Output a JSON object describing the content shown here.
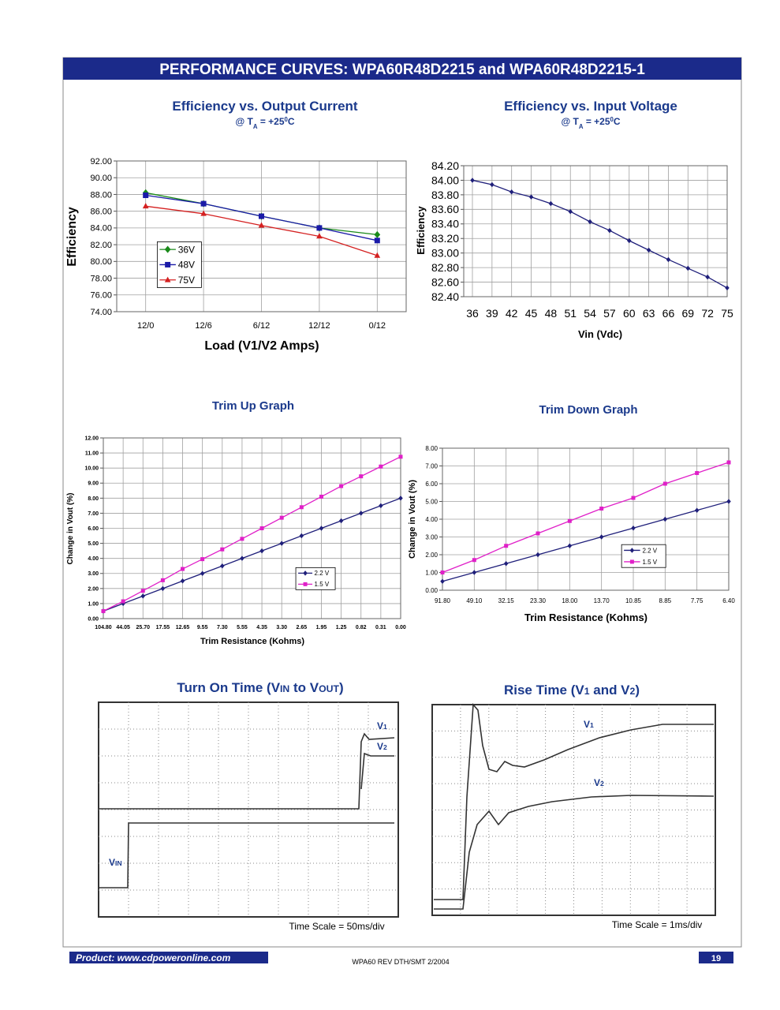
{
  "header": {
    "title": "PERFORMANCE CURVES:  WPA60R48D2215 and WPA60R48D2215-1"
  },
  "chart_data": [
    {
      "type": "line",
      "title": "Efficiency vs. Output Current",
      "subtitle": [
        "@ T",
        "A",
        " = +25",
        "0",
        "C"
      ],
      "x_label": "Load (V1/V2 Amps)",
      "y_label": "Efficiency",
      "categories": [
        "12/0",
        "12/6",
        "6/12",
        "12/12",
        "0/12"
      ],
      "series": [
        {
          "name": "36V",
          "color": "#1a8a1a",
          "marker": "diamond",
          "values": [
            88.2,
            86.9,
            85.4,
            84.0,
            83.2
          ]
        },
        {
          "name": "48V",
          "color": "#1a1aa8",
          "marker": "square",
          "values": [
            87.9,
            86.9,
            85.4,
            84.0,
            82.5
          ]
        },
        {
          "name": "75V",
          "color": "#d42020",
          "marker": "triangle",
          "values": [
            86.6,
            85.7,
            84.3,
            83.0,
            80.7
          ]
        }
      ],
      "ylim": [
        74,
        92
      ],
      "yticks": [
        {
          "value": 74,
          "label": "74.00"
        },
        {
          "value": 76,
          "label": "76.00"
        },
        {
          "value": 78,
          "label": "78.00"
        },
        {
          "value": 80,
          "label": "80.00"
        },
        {
          "value": 82,
          "label": "82.00"
        },
        {
          "value": 84,
          "label": "84.00"
        },
        {
          "value": 86,
          "label": "86.00"
        },
        {
          "value": 88,
          "label": "88.00"
        },
        {
          "value": 90,
          "label": "90.00"
        },
        {
          "value": 92,
          "label": "92.00"
        }
      ],
      "grid": true,
      "legend": "lower left"
    },
    {
      "type": "line",
      "title": "Efficiency vs. Input Voltage",
      "subtitle": [
        "@ T",
        "A",
        " = +25",
        "0",
        "C"
      ],
      "x_label": "Vin (Vdc)",
      "y_label": "Efficiency",
      "categories": [
        "36",
        "39",
        "42",
        "45",
        "48",
        "51",
        "54",
        "57",
        "60",
        "63",
        "66",
        "69",
        "72",
        "75"
      ],
      "series": [
        {
          "color": "#1f1f7a",
          "marker": "diamond",
          "values": [
            84.0,
            83.94,
            83.84,
            83.77,
            83.68,
            83.57,
            83.43,
            83.31,
            83.17,
            83.04,
            82.91,
            82.79,
            82.67,
            82.52
          ]
        }
      ],
      "ylim": [
        82.4,
        84.2
      ],
      "yticks": [
        {
          "value": 82.4,
          "label": "82.40"
        },
        {
          "value": 82.6,
          "label": "82.60"
        },
        {
          "value": 82.8,
          "label": "82.80"
        },
        {
          "value": 83.0,
          "label": "83.00"
        },
        {
          "value": 83.2,
          "label": "83.20"
        },
        {
          "value": 83.4,
          "label": "83.40"
        },
        {
          "value": 83.6,
          "label": "83.60"
        },
        {
          "value": 83.8,
          "label": "83.80"
        },
        {
          "value": 84.0,
          "label": "84.00"
        },
        {
          "value": 84.2,
          "label": "84.20"
        }
      ],
      "grid": true
    },
    {
      "type": "line",
      "title": "Trim Up Graph",
      "x_label": "Trim Resistance (Kohms)",
      "y_label": "Change in Vout (%)",
      "categories": [
        "104.80",
        "44.05",
        "25.70",
        "17.55",
        "12.65",
        "9.55",
        "7.30",
        "5.55",
        "4.35",
        "3.30",
        "2.65",
        "1.95",
        "1.25",
        "0.82",
        "0.31",
        "0.00"
      ],
      "series": [
        {
          "name": "2.2 V",
          "color": "#1f1f7a",
          "marker": "diamond",
          "values": [
            0.5,
            1.0,
            1.5,
            2.0,
            2.5,
            3.0,
            3.5,
            4.0,
            4.5,
            5.0,
            5.5,
            6.0,
            6.5,
            7.0,
            7.5,
            8.0
          ]
        },
        {
          "name": "1.5 V",
          "color": "#e020c8",
          "marker": "square",
          "values": [
            0.5,
            1.15,
            1.85,
            2.55,
            3.3,
            3.95,
            4.6,
            5.3,
            6.0,
            6.7,
            7.4,
            8.1,
            8.8,
            9.45,
            10.1,
            10.75
          ]
        }
      ],
      "ylim": [
        0,
        12
      ],
      "yticks": [
        {
          "value": 0,
          "label": "0.00"
        },
        {
          "value": 1,
          "label": "1.00"
        },
        {
          "value": 2,
          "label": "2.00"
        },
        {
          "value": 3,
          "label": "3.00"
        },
        {
          "value": 4,
          "label": "4.00"
        },
        {
          "value": 5,
          "label": "5.00"
        },
        {
          "value": 6,
          "label": "6.00"
        },
        {
          "value": 7,
          "label": "7.00"
        },
        {
          "value": 8,
          "label": "8.00"
        },
        {
          "value": 9,
          "label": "9.00"
        },
        {
          "value": 10,
          "label": "10.00"
        },
        {
          "value": 11,
          "label": "11.00"
        },
        {
          "value": 12,
          "label": "12.00"
        }
      ],
      "grid": true,
      "legend": "lower right"
    },
    {
      "type": "line",
      "title": "Trim Down Graph",
      "x_label": "Trim Resistance (Kohms)",
      "y_label": "Change in Vout (%)",
      "categories": [
        "91.80",
        "49.10",
        "32.15",
        "23.30",
        "18.00",
        "13.70",
        "10.85",
        "8.85",
        "7.75",
        "6.40"
      ],
      "series": [
        {
          "name": "2.2 V",
          "color": "#1f1f7a",
          "marker": "diamond",
          "values": [
            0.5,
            1.0,
            1.5,
            2.0,
            2.5,
            3.0,
            3.5,
            4.0,
            4.5,
            5.0
          ]
        },
        {
          "name": "1.5 V",
          "color": "#e020c8",
          "marker": "square",
          "values": [
            1.0,
            1.7,
            2.5,
            3.2,
            3.9,
            4.6,
            5.2,
            6.0,
            6.6,
            7.2
          ]
        }
      ],
      "ylim": [
        0,
        8
      ],
      "yticks": [
        {
          "value": 0,
          "label": "0.00"
        },
        {
          "value": 1,
          "label": "1.00"
        },
        {
          "value": 2,
          "label": "2.00"
        },
        {
          "value": 3,
          "label": "3.00"
        },
        {
          "value": 4,
          "label": "4.00"
        },
        {
          "value": 5,
          "label": "5.00"
        },
        {
          "value": 6,
          "label": "6.00"
        },
        {
          "value": 7,
          "label": "7.00"
        },
        {
          "value": 8,
          "label": "8.00"
        }
      ],
      "grid": true,
      "legend": "lower right"
    }
  ],
  "scopes": [
    {
      "title": [
        "Turn On Time (V",
        "IN",
        " to V",
        "OUT",
        ")"
      ],
      "labels": [
        [
          "V",
          "1"
        ],
        [
          "V",
          "2"
        ],
        [
          "V",
          "IN"
        ]
      ],
      "time_scale": "Time Scale = 50ms/div"
    },
    {
      "title": [
        "Rise Time (V",
        "1",
        " and V",
        "2",
        ")"
      ],
      "labels": [
        [
          "V",
          "1"
        ],
        [
          "V",
          "2"
        ]
      ],
      "time_scale": "Time Scale = 1ms/div"
    }
  ],
  "footer": {
    "product": "Product:  www.cdpoweronline.com",
    "revision": "WPA60   REV  DTH/SMT   2/2004",
    "page": "19"
  }
}
